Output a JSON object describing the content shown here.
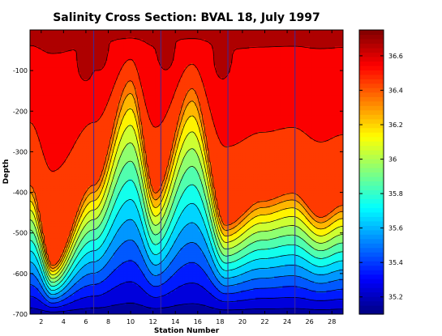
{
  "chart_data": {
    "type": "heatmap",
    "title": "Salinity Cross Section: BVAL 18, July 1997",
    "xlabel": "Station Number",
    "ylabel": "Depth",
    "xlim": [
      1,
      29
    ],
    "ylim": [
      -700,
      0
    ],
    "xticks": [
      2,
      4,
      6,
      8,
      10,
      12,
      14,
      16,
      18,
      20,
      22,
      24,
      26,
      28
    ],
    "yticks": [
      -100,
      -200,
      -300,
      -400,
      -500,
      -600,
      -700
    ],
    "colorbar": {
      "min": 35.1,
      "max": 36.75,
      "ticks": [
        35.2,
        35.4,
        35.6,
        35.8,
        36,
        36.2,
        36.4,
        36.6
      ],
      "colormap": "jet"
    },
    "contour_levels": [
      35.1,
      35.2,
      35.3,
      35.4,
      35.5,
      35.6,
      35.7,
      35.8,
      35.9,
      36.0,
      36.1,
      36.2,
      36.3,
      36.4,
      36.5,
      36.6
    ],
    "station_lines_x": [
      6.7,
      12.7,
      18.7,
      24.7
    ],
    "surface_max_value": 36.72,
    "deep_min_value": 35.15,
    "ridges": [
      {
        "station": 1.0,
        "top_depth": -380
      },
      {
        "station": 3.0,
        "top_depth": -580
      },
      {
        "station": 6.7,
        "top_depth": -380
      },
      {
        "station": 10.0,
        "top_depth": -120
      },
      {
        "station": 12.2,
        "top_depth": -400
      },
      {
        "station": 15.5,
        "top_depth": -140
      },
      {
        "station": 18.5,
        "top_depth": -480
      },
      {
        "station": 21.8,
        "top_depth": -420
      },
      {
        "station": 24.5,
        "top_depth": -400
      },
      {
        "station": 27.0,
        "top_depth": -460
      },
      {
        "station": 29.0,
        "top_depth": -430
      }
    ],
    "surface_maxima": [
      {
        "station": 6.0,
        "depth": -90
      },
      {
        "station": 7.2,
        "depth": -60
      },
      {
        "station": 13.2,
        "depth": -60
      },
      {
        "station": 18.2,
        "depth": -80
      }
    ]
  }
}
